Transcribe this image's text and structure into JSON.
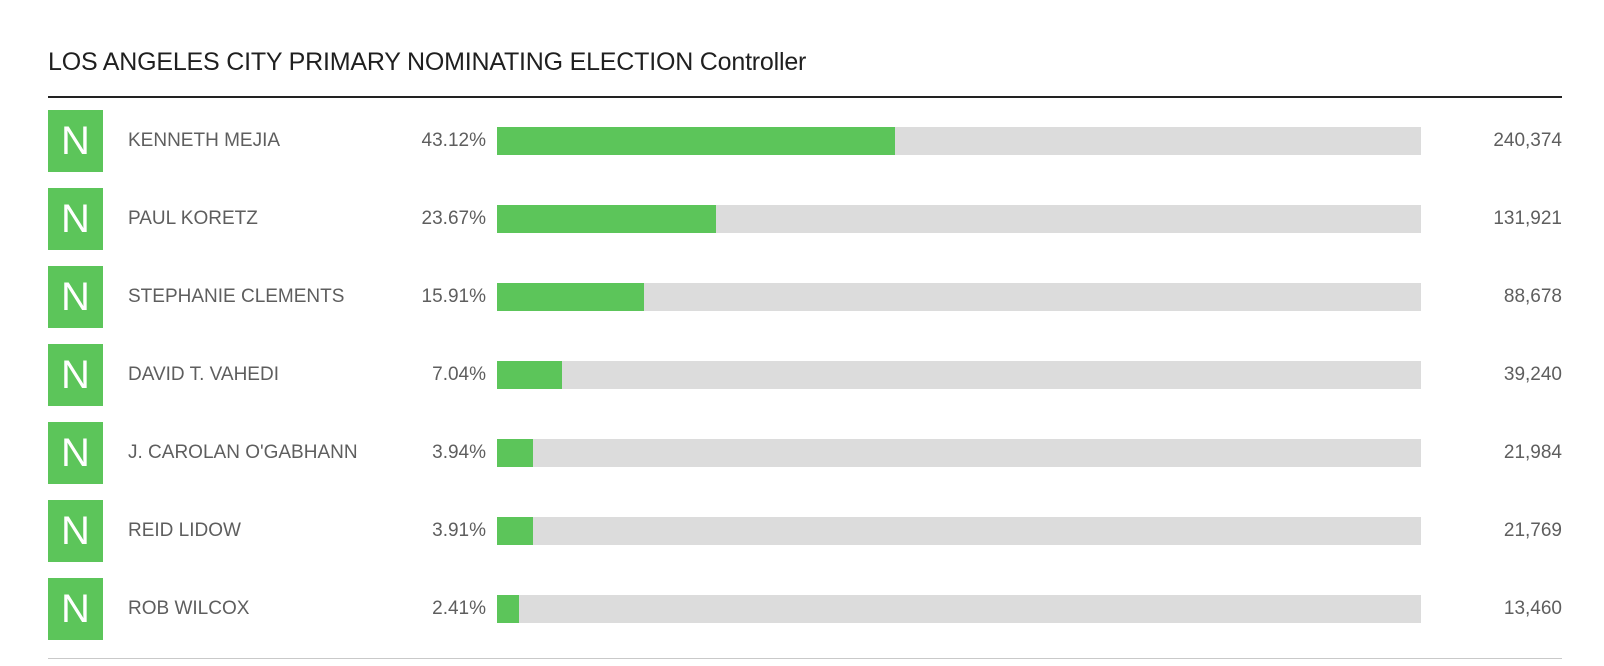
{
  "header": {
    "title": "LOS ANGELES CITY PRIMARY NOMINATING ELECTION Controller"
  },
  "colors": {
    "accent": "#5cc55a",
    "track": "#dcdcdc",
    "text": "#5e5e5e"
  },
  "chart_data": {
    "type": "bar",
    "title": "LOS ANGELES CITY PRIMARY NOMINATING ELECTION Controller",
    "xlabel": "",
    "ylabel": "",
    "xlim": [
      0,
      100
    ],
    "grid": false,
    "categories": [
      "KENNETH MEJIA",
      "PAUL KORETZ",
      "STEPHANIE CLEMENTS",
      "DAVID T. VAHEDI",
      "J. CAROLAN O'GABHANN",
      "REID LIDOW",
      "ROB WILCOX"
    ],
    "values": [
      43.12,
      23.67,
      15.91,
      7.04,
      3.94,
      3.91,
      2.41
    ],
    "rows": [
      {
        "badge": "N",
        "name": "KENNETH MEJIA",
        "pct": "43.12%",
        "value": 43.12,
        "votes": "240,374"
      },
      {
        "badge": "N",
        "name": "PAUL KORETZ",
        "pct": "23.67%",
        "value": 23.67,
        "votes": "131,921"
      },
      {
        "badge": "N",
        "name": "STEPHANIE CLEMENTS",
        "pct": "15.91%",
        "value": 15.91,
        "votes": "88,678"
      },
      {
        "badge": "N",
        "name": "DAVID T. VAHEDI",
        "pct": "7.04%",
        "value": 7.04,
        "votes": "39,240"
      },
      {
        "badge": "N",
        "name": "J. CAROLAN O'GABHANN",
        "pct": "3.94%",
        "value": 3.94,
        "votes": "21,984"
      },
      {
        "badge": "N",
        "name": "REID LIDOW",
        "pct": "3.91%",
        "value": 3.91,
        "votes": "21,769"
      },
      {
        "badge": "N",
        "name": "ROB WILCOX",
        "pct": "2.41%",
        "value": 2.41,
        "votes": "13,460"
      }
    ]
  }
}
